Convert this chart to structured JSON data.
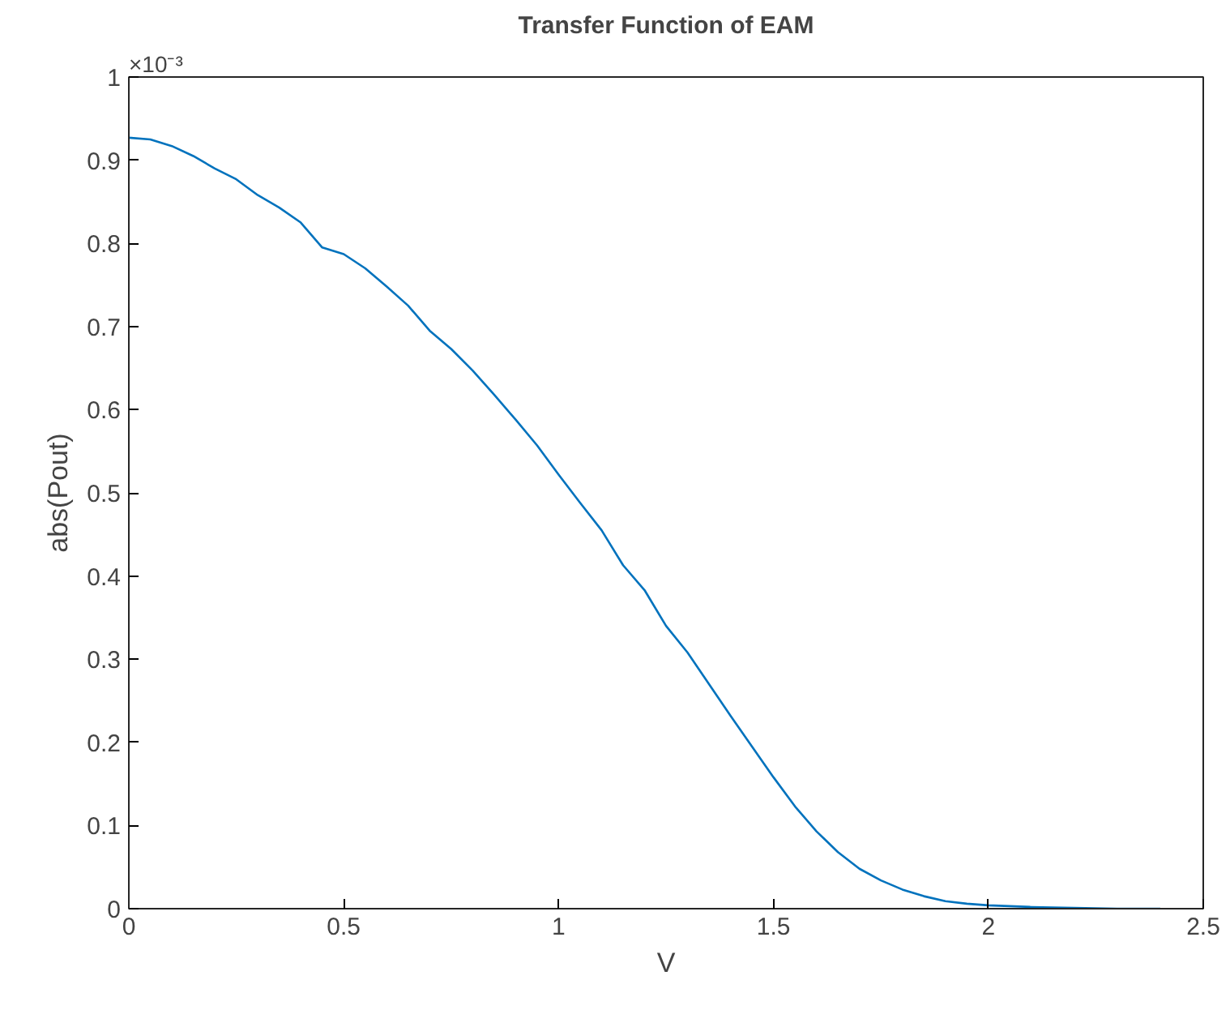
{
  "chart_data": {
    "type": "line",
    "title": "Transfer Function of EAM",
    "xlabel": "V",
    "ylabel": "abs(Pout)",
    "annotations": [
      "×10⁻³"
    ],
    "x": [
      0,
      0.05,
      0.1,
      0.15,
      0.2,
      0.25,
      0.3,
      0.35,
      0.4,
      0.45,
      0.5,
      0.55,
      0.6,
      0.65,
      0.7,
      0.75,
      0.8,
      0.85,
      0.9,
      0.95,
      1.0,
      1.05,
      1.1,
      1.15,
      1.2,
      1.25,
      1.3,
      1.35,
      1.4,
      1.45,
      1.5,
      1.55,
      1.6,
      1.65,
      1.7,
      1.75,
      1.8,
      1.85,
      1.9,
      1.95,
      2.0,
      2.1,
      2.2,
      2.3,
      2.4
    ],
    "series": [
      {
        "color": "#0072bd",
        "values": [
          0.927,
          0.925,
          0.917,
          0.905,
          0.89,
          0.877,
          0.858,
          0.843,
          0.825,
          0.795,
          0.787,
          0.77,
          0.748,
          0.725,
          0.695,
          0.673,
          0.647,
          0.618,
          0.588,
          0.557,
          0.522,
          0.488,
          0.455,
          0.413,
          0.383,
          0.34,
          0.308,
          0.27,
          0.232,
          0.195,
          0.158,
          0.123,
          0.093,
          0.068,
          0.048,
          0.034,
          0.023,
          0.015,
          0.009,
          0.006,
          0.004,
          0.002,
          0.001,
          0.0,
          0.0
        ]
      }
    ],
    "xlim": [
      0,
      2.5
    ],
    "xticks": [
      0,
      0.5,
      1,
      1.5,
      2,
      2.5
    ],
    "ylim": [
      0,
      1
    ],
    "yticks": [
      0,
      0.1,
      0.2,
      0.3,
      0.4,
      0.5,
      0.6,
      0.7,
      0.8,
      0.9,
      1
    ],
    "grid": false,
    "line_style": "solid",
    "marker": "none"
  }
}
